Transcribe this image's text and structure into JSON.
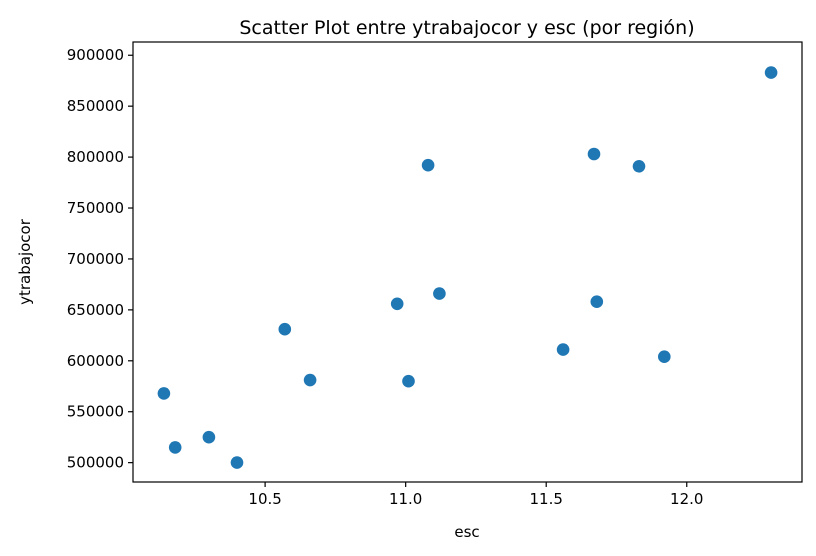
{
  "chart_data": {
    "type": "scatter",
    "title": "Scatter Plot entre ytrabajocor y esc (por región)",
    "xlabel": "esc",
    "ylabel": "ytrabajocor",
    "xlim": [
      10.03,
      12.41
    ],
    "ylim": [
      481000,
      913000
    ],
    "xticks": [
      10.5,
      11.0,
      11.5,
      12.0
    ],
    "xtick_labels": [
      "10.5",
      "11.0",
      "11.5",
      "12.0"
    ],
    "yticks": [
      500000,
      550000,
      600000,
      650000,
      700000,
      750000,
      800000,
      850000,
      900000
    ],
    "ytick_labels": [
      "500000",
      "550000",
      "600000",
      "650000",
      "700000",
      "750000",
      "800000",
      "850000",
      "900000"
    ],
    "grid": false,
    "color": "#1f77b4",
    "x": [
      10.14,
      10.18,
      10.3,
      10.4,
      10.57,
      10.66,
      10.97,
      11.01,
      11.08,
      11.12,
      11.56,
      11.67,
      11.68,
      11.83,
      11.92,
      12.3
    ],
    "y": [
      568000,
      515000,
      525000,
      500000,
      631000,
      581000,
      656000,
      580000,
      792000,
      666000,
      611000,
      803000,
      658000,
      791000,
      604000,
      883000
    ]
  }
}
